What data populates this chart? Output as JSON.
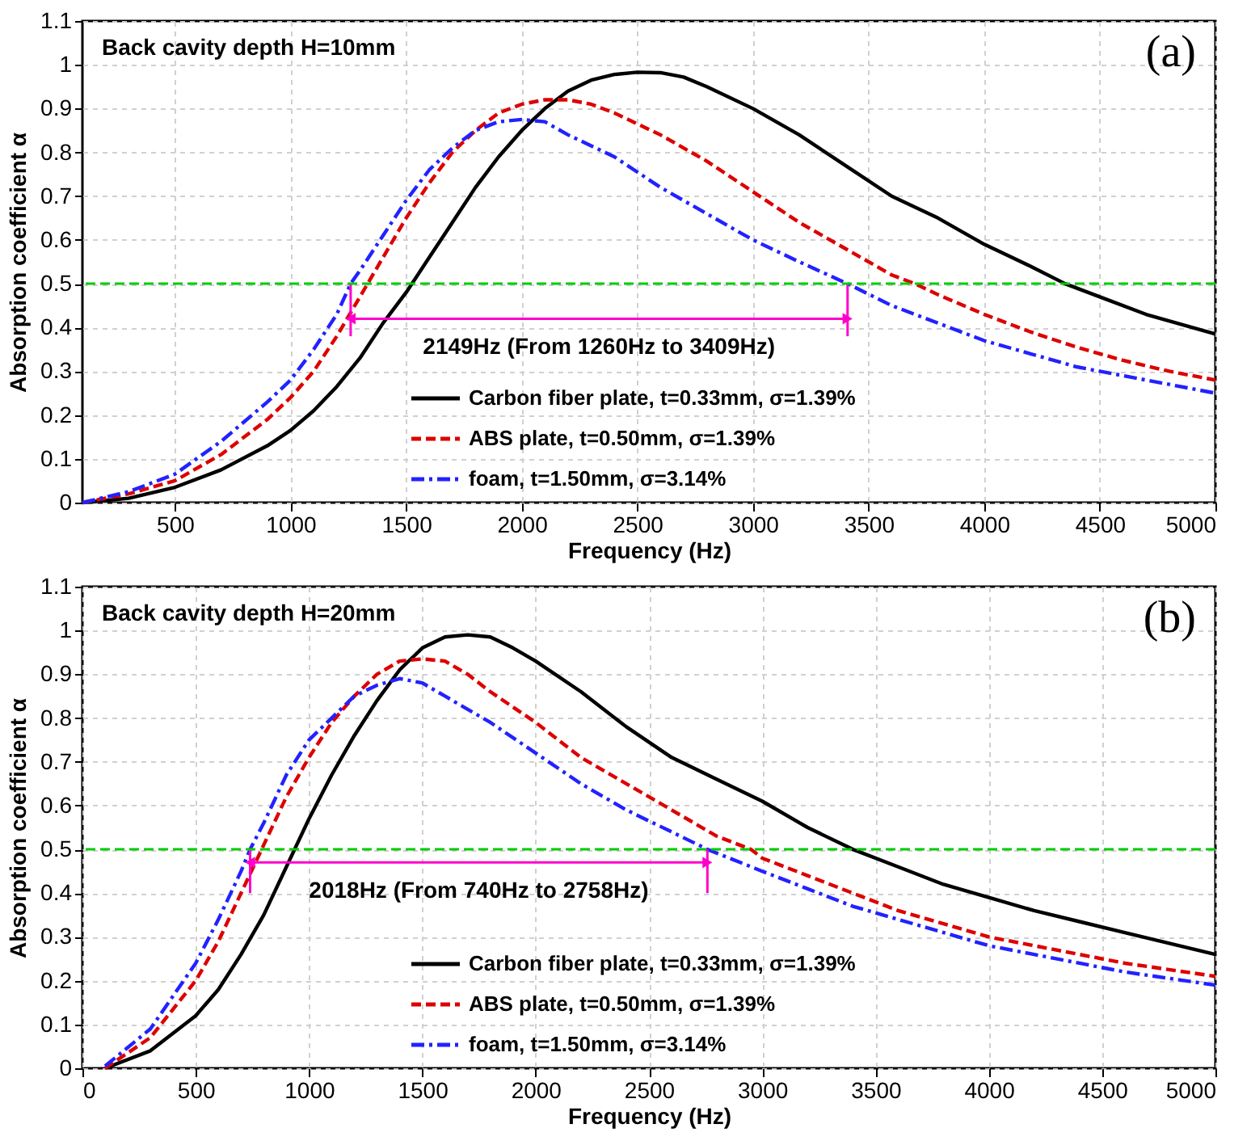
{
  "chart_data": [
    {
      "type": "line",
      "xlabel": "Frequency (Hz)",
      "ylabel": "Absorption coefficient α",
      "xlim": [
        100,
        5000
      ],
      "xticks": [
        500,
        1000,
        1500,
        2000,
        2500,
        3000,
        3500,
        4000,
        4500,
        5000
      ],
      "ylim": [
        0,
        1.1
      ],
      "yticks": [
        0,
        0.1,
        0.2,
        0.3,
        0.4,
        0.5,
        0.6,
        0.7,
        0.8,
        0.9,
        1,
        1.1
      ],
      "grid": true,
      "legend": "bottom",
      "annotations": [
        "(a)",
        "Back cavity depth H=10mm",
        {
          "text": "2149Hz (From 1260Hz to 3409Hz)",
          "x": 2334,
          "y": 0.42
        }
      ],
      "ref_lines": [
        {
          "axis": "y",
          "value": 0.5,
          "color": "#00cc00",
          "line_style": "dashed"
        }
      ],
      "series": [
        {
          "name": "Carbon fiber plate, t=0.33mm, σ=1.39%",
          "color": "#000000",
          "line_style": "solid",
          "x": [
            100,
            300,
            500,
            700,
            900,
            1000,
            1100,
            1200,
            1300,
            1400,
            1500,
            1600,
            1700,
            1800,
            1900,
            2000,
            2100,
            2200,
            2300,
            2400,
            2500,
            2600,
            2700,
            2800,
            3000,
            3200,
            3400,
            3600,
            3800,
            4000,
            4200,
            4350,
            4500,
            4700,
            5000
          ],
          "values": [
            0,
            0.01,
            0.035,
            0.075,
            0.13,
            0.165,
            0.21,
            0.265,
            0.33,
            0.41,
            0.48,
            0.56,
            0.64,
            0.72,
            0.79,
            0.85,
            0.9,
            0.94,
            0.965,
            0.978,
            0.983,
            0.982,
            0.972,
            0.95,
            0.9,
            0.84,
            0.77,
            0.7,
            0.65,
            0.59,
            0.54,
            0.5,
            0.47,
            0.43,
            0.385
          ]
        },
        {
          "name": "ABS plate, t=0.50mm, σ=1.39%",
          "color": "#dd0000",
          "line_style": "dashed",
          "x": [
            100,
            300,
            500,
            700,
            900,
            1000,
            1100,
            1200,
            1300,
            1400,
            1500,
            1600,
            1700,
            1800,
            1900,
            2000,
            2100,
            2200,
            2300,
            2400,
            2600,
            2800,
            3000,
            3200,
            3400,
            3600,
            3700,
            3800,
            4000,
            4200,
            4400,
            4600,
            4800,
            5000
          ],
          "values": [
            0,
            0.02,
            0.05,
            0.11,
            0.19,
            0.24,
            0.3,
            0.38,
            0.47,
            0.56,
            0.65,
            0.73,
            0.8,
            0.85,
            0.89,
            0.91,
            0.92,
            0.92,
            0.91,
            0.89,
            0.84,
            0.78,
            0.71,
            0.64,
            0.58,
            0.52,
            0.5,
            0.475,
            0.43,
            0.39,
            0.355,
            0.325,
            0.3,
            0.28
          ]
        },
        {
          "name": "foam, t=1.50mm, σ=3.14%",
          "color": "#2222ff",
          "line_style": "dotted",
          "x": [
            100,
            300,
            500,
            700,
            900,
            1000,
            1100,
            1200,
            1260,
            1300,
            1400,
            1500,
            1600,
            1700,
            1800,
            1900,
            2000,
            2100,
            2200,
            2400,
            2600,
            2800,
            3000,
            3200,
            3409,
            3600,
            3800,
            4000,
            4200,
            4400,
            4600,
            4800,
            5000
          ],
          "values": [
            0,
            0.025,
            0.065,
            0.14,
            0.23,
            0.28,
            0.35,
            0.43,
            0.5,
            0.53,
            0.61,
            0.69,
            0.76,
            0.81,
            0.85,
            0.87,
            0.875,
            0.87,
            0.84,
            0.79,
            0.72,
            0.66,
            0.6,
            0.55,
            0.5,
            0.45,
            0.41,
            0.37,
            0.34,
            0.31,
            0.29,
            0.27,
            0.25
          ]
        },
        {
          "color": "#ff00cc",
          "line_style": "solid",
          "marker": "triangle",
          "x": [
            1260,
            3409
          ],
          "values": [
            0.42,
            0.42
          ]
        },
        {
          "color": "#ff00cc",
          "line_style": "solid",
          "x": [
            1260,
            1260
          ],
          "values": [
            0.38,
            0.5
          ]
        },
        {
          "color": "#ff00cc",
          "line_style": "solid",
          "x": [
            3409,
            3409
          ],
          "values": [
            0.38,
            0.5
          ]
        }
      ]
    },
    {
      "type": "line",
      "xlabel": "Frequency (Hz)",
      "ylabel": "Absorption coefficient α",
      "xlim": [
        0,
        5000
      ],
      "xticks": [
        0,
        500,
        1000,
        1500,
        2000,
        2500,
        3000,
        3500,
        4000,
        4500,
        5000
      ],
      "ylim": [
        0,
        1.1
      ],
      "yticks": [
        0,
        0.1,
        0.2,
        0.3,
        0.4,
        0.5,
        0.6,
        0.7,
        0.8,
        0.9,
        1,
        1.1
      ],
      "grid": true,
      "legend": "bottom",
      "annotations": [
        "(b)",
        "Back cavity depth H=20mm",
        {
          "text": "2018Hz (From 740Hz to 2758Hz)",
          "x": 1749,
          "y": 0.47
        }
      ],
      "ref_lines": [
        {
          "axis": "y",
          "value": 0.5,
          "color": "#00cc00",
          "line_style": "dashed"
        }
      ],
      "series": [
        {
          "name": "Carbon fiber plate, t=0.33mm, σ=1.39%",
          "color": "#000000",
          "line_style": "solid",
          "x": [
            100,
            300,
            500,
            600,
            700,
            800,
            900,
            1000,
            1100,
            1200,
            1300,
            1400,
            1500,
            1600,
            1700,
            1800,
            1900,
            2000,
            2200,
            2400,
            2600,
            2800,
            3000,
            3200,
            3400,
            3600,
            3800,
            4000,
            4200,
            4400,
            4600,
            4800,
            5000
          ],
          "values": [
            0,
            0.04,
            0.12,
            0.18,
            0.26,
            0.35,
            0.46,
            0.57,
            0.67,
            0.76,
            0.84,
            0.91,
            0.96,
            0.985,
            0.99,
            0.985,
            0.96,
            0.93,
            0.86,
            0.78,
            0.71,
            0.66,
            0.61,
            0.55,
            0.5,
            0.46,
            0.42,
            0.39,
            0.36,
            0.335,
            0.31,
            0.285,
            0.26
          ]
        },
        {
          "name": "ABS plate, t=0.50mm, σ=1.39%",
          "color": "#dd0000",
          "line_style": "dashed",
          "x": [
            100,
            300,
            500,
            600,
            700,
            800,
            900,
            1000,
            1100,
            1200,
            1300,
            1400,
            1500,
            1600,
            1700,
            1800,
            2000,
            2200,
            2400,
            2600,
            2800,
            2950,
            3000,
            3200,
            3400,
            3600,
            3800,
            4000,
            4200,
            4400,
            4600,
            4800,
            5000
          ],
          "values": [
            0,
            0.07,
            0.2,
            0.29,
            0.4,
            0.51,
            0.62,
            0.71,
            0.79,
            0.85,
            0.9,
            0.93,
            0.935,
            0.93,
            0.9,
            0.86,
            0.79,
            0.71,
            0.65,
            0.59,
            0.53,
            0.5,
            0.48,
            0.44,
            0.4,
            0.36,
            0.33,
            0.3,
            0.28,
            0.26,
            0.24,
            0.225,
            0.21
          ]
        },
        {
          "name": "foam, t=1.50mm, σ=3.14%",
          "color": "#2222ff",
          "line_style": "dotted",
          "x": [
            100,
            300,
            500,
            600,
            700,
            740,
            800,
            900,
            1000,
            1100,
            1200,
            1300,
            1400,
            1500,
            1600,
            1800,
            2000,
            2200,
            2400,
            2600,
            2758,
            3000,
            3200,
            3400,
            3600,
            3800,
            4000,
            4200,
            4400,
            4600,
            4800,
            5000
          ],
          "values": [
            0.005,
            0.09,
            0.24,
            0.34,
            0.45,
            0.5,
            0.56,
            0.67,
            0.75,
            0.8,
            0.85,
            0.875,
            0.89,
            0.88,
            0.85,
            0.79,
            0.72,
            0.65,
            0.59,
            0.54,
            0.5,
            0.45,
            0.41,
            0.37,
            0.34,
            0.31,
            0.28,
            0.26,
            0.24,
            0.22,
            0.205,
            0.19
          ]
        },
        {
          "color": "#ff00cc",
          "line_style": "solid",
          "marker": "triangle",
          "x": [
            740,
            2758
          ],
          "values": [
            0.47,
            0.47
          ]
        },
        {
          "color": "#ff00cc",
          "line_style": "solid",
          "x": [
            740,
            740
          ],
          "values": [
            0.4,
            0.5
          ]
        },
        {
          "color": "#ff00cc",
          "line_style": "solid",
          "x": [
            2758,
            2758
          ],
          "values": [
            0.4,
            0.5
          ]
        }
      ]
    }
  ]
}
